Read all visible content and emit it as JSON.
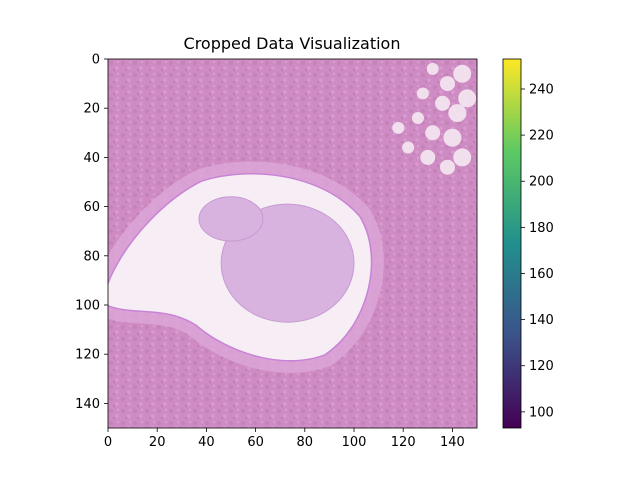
{
  "chart_data": {
    "type": "heatmap",
    "title": "Cropped Data Visualization",
    "xlabel": "",
    "ylabel": "",
    "xlim": [
      0,
      150
    ],
    "ylim": [
      150,
      0
    ],
    "x_ticks": [
      0,
      20,
      40,
      60,
      80,
      100,
      120,
      140
    ],
    "y_ticks": [
      0,
      20,
      40,
      60,
      80,
      100,
      120,
      140
    ],
    "image": {
      "description": "H&E-like stained tissue crop; pink/purple textured background with a large pale cavity containing a rounded lavender mass",
      "colors": {
        "tissue": "#cf8cc4",
        "tissue_dark": "#b87aa9",
        "stroma": "#dca8d8",
        "cavity": "#f6eef4",
        "mass": "#d9b3df",
        "rim": "#c883d6",
        "fat": "#f4e8f2"
      }
    },
    "colorbar": {
      "colormap": "viridis",
      "range": [
        93,
        253
      ],
      "ticks": [
        100,
        120,
        140,
        160,
        180,
        200,
        220,
        240
      ],
      "stops": [
        "#440154",
        "#3b528b",
        "#21908d",
        "#5dc963",
        "#fde725"
      ]
    }
  }
}
